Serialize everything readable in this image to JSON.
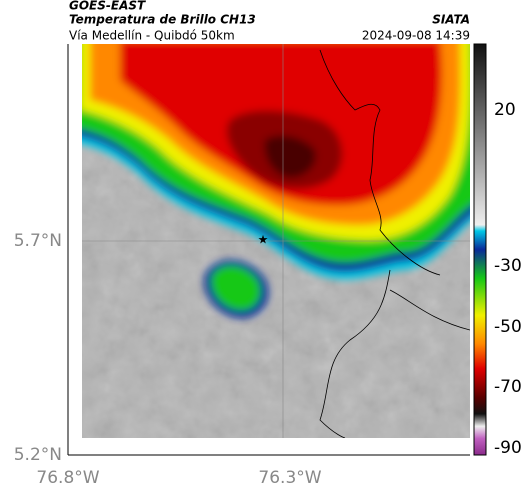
{
  "header": {
    "source": "GOES-EAST",
    "product": "Temperatura de Brillo CH13",
    "route": "Vía Medellín - Quibdó 50km",
    "brand": "SIATA",
    "timestamp": "2024-09-08 14:39"
  },
  "map": {
    "lat_labels": [
      "5.7°N",
      "5.2°N"
    ],
    "lon_labels": [
      "76.8°W",
      "76.3°W"
    ],
    "colorbar": {
      "labels": [
        "20",
        "-30",
        "-50",
        "-70",
        "-90"
      ]
    }
  }
}
